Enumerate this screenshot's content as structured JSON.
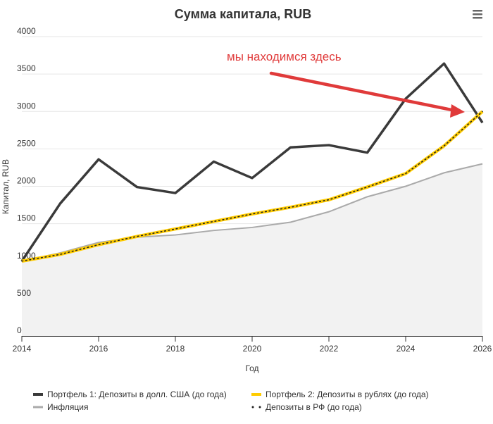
{
  "chart_data": {
    "type": "line",
    "title": "Сумма капитала, RUB",
    "xlabel": "Год",
    "ylabel": "Капитал, RUB",
    "xlim": [
      2014,
      2026
    ],
    "ylim": [
      0,
      4000
    ],
    "xticks": [
      "2014",
      "2016",
      "2018",
      "2020",
      "2022",
      "2024",
      "2026"
    ],
    "yticks": [
      "0",
      "500",
      "1000",
      "1500",
      "2000",
      "2500",
      "3000",
      "3500",
      "4000"
    ],
    "grid": true,
    "legend_position": "bottom",
    "x": [
      2014,
      2015,
      2016,
      2017,
      2018,
      2019,
      2020,
      2021,
      2022,
      2023,
      2024,
      2025,
      2026
    ],
    "series": [
      {
        "name": "Портфель 1: Депозиты в долл. США (до года)",
        "color": "#3a3a3a",
        "style": "line",
        "values": [
          1000,
          1770,
          2360,
          1990,
          1910,
          2330,
          2110,
          2520,
          2550,
          2450,
          3170,
          3640,
          2850
        ]
      },
      {
        "name": "Портфель 2: Депозиты в рублях (до года)",
        "color": "#ffcc00",
        "style": "line",
        "values": [
          1000,
          1090,
          1220,
          1330,
          1430,
          1530,
          1630,
          1720,
          1820,
          1990,
          2170,
          2540,
          3000
        ]
      },
      {
        "name": "Инфляция",
        "color": "#aaaaaa",
        "style": "area",
        "values": [
          1000,
          1110,
          1250,
          1320,
          1350,
          1410,
          1450,
          1520,
          1660,
          1860,
          2000,
          2180,
          2300
        ]
      },
      {
        "name": "Депозиты в РФ (до года)",
        "color": "#222222",
        "style": "dotted",
        "values": [
          1000,
          1090,
          1220,
          1330,
          1430,
          1530,
          1630,
          1720,
          1820,
          1990,
          2170,
          2540,
          3000
        ]
      }
    ],
    "annotation": {
      "text": "мы находимся здесь",
      "color": "#e03a3a"
    }
  },
  "menu": {
    "icon": "hamburger-menu-icon"
  }
}
